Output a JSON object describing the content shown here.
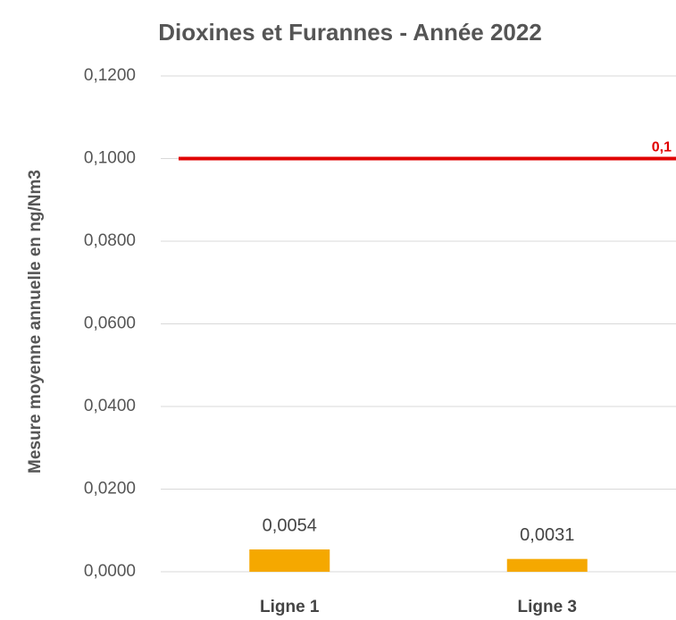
{
  "chart_data": {
    "type": "bar",
    "title": "Dioxines et Furannes - Année 2022",
    "y_label": "Mesure moyenne annuelle en ng/Nm3",
    "categories": [
      "Ligne 1",
      "Ligne 3"
    ],
    "values": [
      0.0054,
      0.0031
    ],
    "value_labels": [
      "0,0054",
      "0,0031"
    ],
    "color": "#f5a800",
    "ylim": [
      0,
      0.12
    ],
    "yticks": [
      {
        "value": 0,
        "label": "0,0000"
      },
      {
        "value": 0.02,
        "label": "0,0200"
      },
      {
        "value": 0.04,
        "label": "0,0400"
      },
      {
        "value": 0.06,
        "label": "0,0600"
      },
      {
        "value": 0.08,
        "label": "0,0800"
      },
      {
        "value": 0.1,
        "label": "0,1000"
      },
      {
        "value": 0.12,
        "label": "0,1200"
      }
    ],
    "grid": true,
    "threshold": {
      "value": 0.1,
      "label": "0,1",
      "color": "#e00000"
    }
  }
}
